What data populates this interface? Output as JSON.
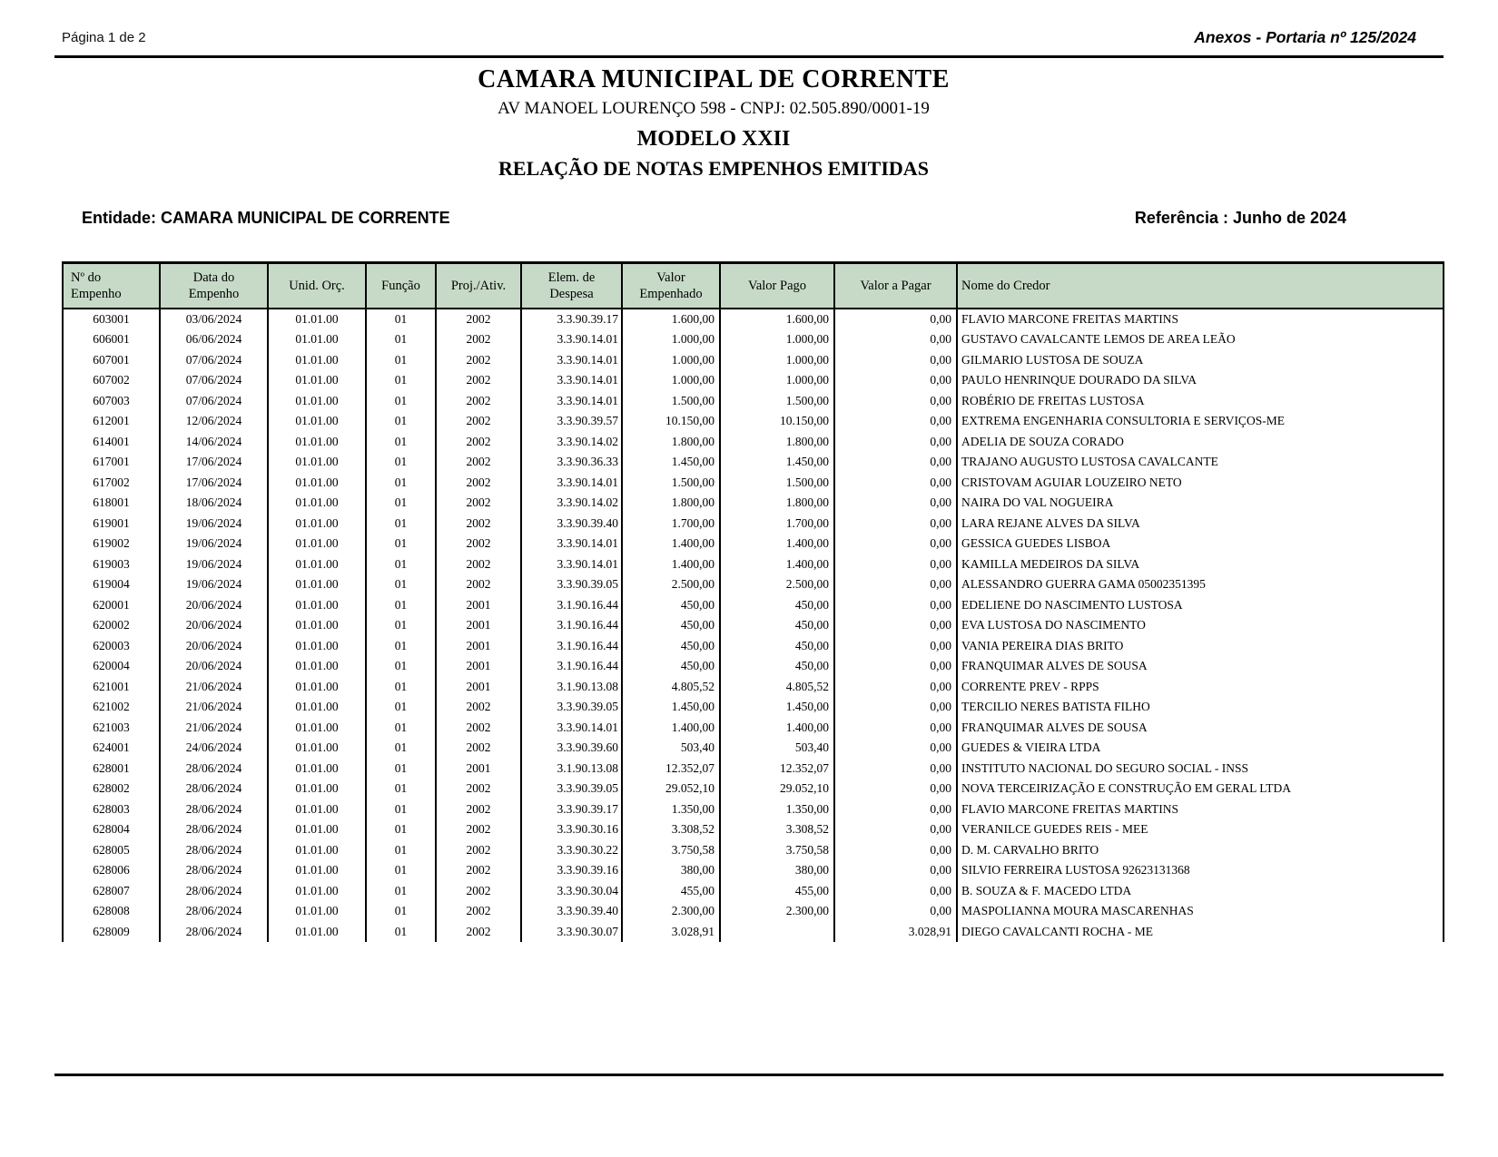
{
  "page": {
    "page_indicator": "Página 1 de 2",
    "annex_ref": "Anexos - Portaria nº 125/2024"
  },
  "header": {
    "org_name": "CAMARA MUNICIPAL DE CORRENTE",
    "address_cnpj": "AV MANOEL LOURENÇO 598  -  CNPJ: 02.505.890/0001-19",
    "model": "MODELO XXII",
    "report_title": "RELAÇÃO DE NOTAS EMPENHOS EMITIDAS"
  },
  "meta": {
    "entity_line": "Entidade: CAMARA MUNICIPAL DE CORRENTE",
    "reference": "Referência : Junho de 2024"
  },
  "colors": {
    "table_header_bg": "#c7dac7"
  },
  "table": {
    "columns": [
      "Nº do Empenho",
      "Data do Empenho",
      "Unid. Orç.",
      "Função",
      "Proj./Ativ.",
      "Elem. de Despesa",
      "Valor Empenhado",
      "Valor Pago",
      "Valor a Pagar",
      "Nome do Credor"
    ],
    "rows": [
      [
        "603001",
        "03/06/2024",
        "01.01.00",
        "01",
        "2002",
        "3.3.90.39.17",
        "1.600,00",
        "1.600,00",
        "0,00",
        "FLAVIO MARCONE FREITAS MARTINS"
      ],
      [
        "606001",
        "06/06/2024",
        "01.01.00",
        "01",
        "2002",
        "3.3.90.14.01",
        "1.000,00",
        "1.000,00",
        "0,00",
        "GUSTAVO CAVALCANTE LEMOS DE AREA LEÃO"
      ],
      [
        "607001",
        "07/06/2024",
        "01.01.00",
        "01",
        "2002",
        "3.3.90.14.01",
        "1.000,00",
        "1.000,00",
        "0,00",
        "GILMARIO LUSTOSA DE SOUZA"
      ],
      [
        "607002",
        "07/06/2024",
        "01.01.00",
        "01",
        "2002",
        "3.3.90.14.01",
        "1.000,00",
        "1.000,00",
        "0,00",
        "PAULO HENRINQUE DOURADO DA SILVA"
      ],
      [
        "607003",
        "07/06/2024",
        "01.01.00",
        "01",
        "2002",
        "3.3.90.14.01",
        "1.500,00",
        "1.500,00",
        "0,00",
        "ROBÉRIO DE FREITAS LUSTOSA"
      ],
      [
        "612001",
        "12/06/2024",
        "01.01.00",
        "01",
        "2002",
        "3.3.90.39.57",
        "10.150,00",
        "10.150,00",
        "0,00",
        "EXTREMA ENGENHARIA CONSULTORIA E SERVIÇOS-ME"
      ],
      [
        "614001",
        "14/06/2024",
        "01.01.00",
        "01",
        "2002",
        "3.3.90.14.02",
        "1.800,00",
        "1.800,00",
        "0,00",
        "ADELIA DE SOUZA CORADO"
      ],
      [
        "617001",
        "17/06/2024",
        "01.01.00",
        "01",
        "2002",
        "3.3.90.36.33",
        "1.450,00",
        "1.450,00",
        "0,00",
        "TRAJANO AUGUSTO LUSTOSA CAVALCANTE"
      ],
      [
        "617002",
        "17/06/2024",
        "01.01.00",
        "01",
        "2002",
        "3.3.90.14.01",
        "1.500,00",
        "1.500,00",
        "0,00",
        "CRISTOVAM AGUIAR LOUZEIRO NETO"
      ],
      [
        "618001",
        "18/06/2024",
        "01.01.00",
        "01",
        "2002",
        "3.3.90.14.02",
        "1.800,00",
        "1.800,00",
        "0,00",
        "NAIRA DO VAL NOGUEIRA"
      ],
      [
        "619001",
        "19/06/2024",
        "01.01.00",
        "01",
        "2002",
        "3.3.90.39.40",
        "1.700,00",
        "1.700,00",
        "0,00",
        "LARA REJANE ALVES DA SILVA"
      ],
      [
        "619002",
        "19/06/2024",
        "01.01.00",
        "01",
        "2002",
        "3.3.90.14.01",
        "1.400,00",
        "1.400,00",
        "0,00",
        "GESSICA GUEDES LISBOA"
      ],
      [
        "619003",
        "19/06/2024",
        "01.01.00",
        "01",
        "2002",
        "3.3.90.14.01",
        "1.400,00",
        "1.400,00",
        "0,00",
        "KAMILLA MEDEIROS DA SILVA"
      ],
      [
        "619004",
        "19/06/2024",
        "01.01.00",
        "01",
        "2002",
        "3.3.90.39.05",
        "2.500,00",
        "2.500,00",
        "0,00",
        "ALESSANDRO GUERRA GAMA 05002351395"
      ],
      [
        "620001",
        "20/06/2024",
        "01.01.00",
        "01",
        "2001",
        "3.1.90.16.44",
        "450,00",
        "450,00",
        "0,00",
        "EDELIENE DO NASCIMENTO LUSTOSA"
      ],
      [
        "620002",
        "20/06/2024",
        "01.01.00",
        "01",
        "2001",
        "3.1.90.16.44",
        "450,00",
        "450,00",
        "0,00",
        "EVA LUSTOSA DO NASCIMENTO"
      ],
      [
        "620003",
        "20/06/2024",
        "01.01.00",
        "01",
        "2001",
        "3.1.90.16.44",
        "450,00",
        "450,00",
        "0,00",
        "VANIA PEREIRA DIAS BRITO"
      ],
      [
        "620004",
        "20/06/2024",
        "01.01.00",
        "01",
        "2001",
        "3.1.90.16.44",
        "450,00",
        "450,00",
        "0,00",
        "FRANQUIMAR ALVES DE SOUSA"
      ],
      [
        "621001",
        "21/06/2024",
        "01.01.00",
        "01",
        "2001",
        "3.1.90.13.08",
        "4.805,52",
        "4.805,52",
        "0,00",
        "CORRENTE PREV - RPPS"
      ],
      [
        "621002",
        "21/06/2024",
        "01.01.00",
        "01",
        "2002",
        "3.3.90.39.05",
        "1.450,00",
        "1.450,00",
        "0,00",
        "TERCILIO NERES BATISTA FILHO"
      ],
      [
        "621003",
        "21/06/2024",
        "01.01.00",
        "01",
        "2002",
        "3.3.90.14.01",
        "1.400,00",
        "1.400,00",
        "0,00",
        "FRANQUIMAR ALVES DE SOUSA"
      ],
      [
        "624001",
        "24/06/2024",
        "01.01.00",
        "01",
        "2002",
        "3.3.90.39.60",
        "503,40",
        "503,40",
        "0,00",
        "GUEDES & VIEIRA LTDA"
      ],
      [
        "628001",
        "28/06/2024",
        "01.01.00",
        "01",
        "2001",
        "3.1.90.13.08",
        "12.352,07",
        "12.352,07",
        "0,00",
        "INSTITUTO NACIONAL DO SEGURO SOCIAL - INSS"
      ],
      [
        "628002",
        "28/06/2024",
        "01.01.00",
        "01",
        "2002",
        "3.3.90.39.05",
        "29.052,10",
        "29.052,10",
        "0,00",
        "NOVA TERCEIRIZAÇÃO E CONSTRUÇÃO EM GERAL LTDA"
      ],
      [
        "628003",
        "28/06/2024",
        "01.01.00",
        "01",
        "2002",
        "3.3.90.39.17",
        "1.350,00",
        "1.350,00",
        "0,00",
        "FLAVIO MARCONE FREITAS MARTINS"
      ],
      [
        "628004",
        "28/06/2024",
        "01.01.00",
        "01",
        "2002",
        "3.3.90.30.16",
        "3.308,52",
        "3.308,52",
        "0,00",
        "VERANILCE GUEDES REIS - MEE"
      ],
      [
        "628005",
        "28/06/2024",
        "01.01.00",
        "01",
        "2002",
        "3.3.90.30.22",
        "3.750,58",
        "3.750,58",
        "0,00",
        "D. M. CARVALHO BRITO"
      ],
      [
        "628006",
        "28/06/2024",
        "01.01.00",
        "01",
        "2002",
        "3.3.90.39.16",
        "380,00",
        "380,00",
        "0,00",
        "SILVIO FERREIRA LUSTOSA 92623131368"
      ],
      [
        "628007",
        "28/06/2024",
        "01.01.00",
        "01",
        "2002",
        "3.3.90.30.04",
        "455,00",
        "455,00",
        "0,00",
        "B. SOUZA & F. MACEDO LTDA"
      ],
      [
        "628008",
        "28/06/2024",
        "01.01.00",
        "01",
        "2002",
        "3.3.90.39.40",
        "2.300,00",
        "2.300,00",
        "0,00",
        "MASPOLIANNA MOURA MASCARENHAS"
      ],
      [
        "628009",
        "28/06/2024",
        "01.01.00",
        "01",
        "2002",
        "3.3.90.30.07",
        "3.028,91",
        "",
        "3.028,91",
        "DIEGO CAVALCANTI ROCHA - ME"
      ]
    ]
  }
}
